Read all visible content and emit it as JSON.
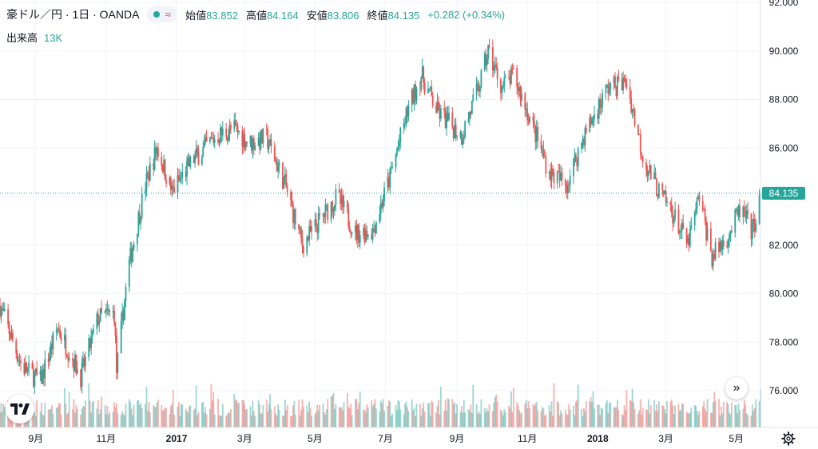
{
  "header": {
    "symbol_title": "豪ドル／円 · 1日 · OANDA",
    "ohlc": [
      {
        "label": "始値",
        "value": "83.852"
      },
      {
        "label": "高値",
        "value": "84.164"
      },
      {
        "label": "安値",
        "value": "83.806"
      },
      {
        "label": "終値",
        "value": "84.135"
      }
    ],
    "change": "+0.282 (+0.34%)",
    "pill_icons": [
      "status-dot-icon",
      "wave-icon"
    ]
  },
  "volume_legend": {
    "label": "出来高",
    "value": "13K"
  },
  "price_scale": {
    "ticks": [
      "92.000",
      "90.000",
      "88.000",
      "86.000",
      "84.000",
      "82.000",
      "80.000",
      "78.000",
      "76.000"
    ],
    "last_price_label": "84.135"
  },
  "time_scale": {
    "ticks": [
      "9月",
      "11月",
      "2017",
      "3月",
      "5月",
      "7月",
      "9月",
      "11月",
      "2018",
      "3月",
      "5月"
    ]
  },
  "icons": {
    "logo": "tradingview-logo-icon",
    "scroll": "double-chevron-right-icon",
    "settings": "gear-icon"
  },
  "colors": {
    "up": "#26a69a",
    "down": "#ef5350",
    "grid": "#f0f3fa",
    "text": "#131722",
    "last_price": "#26a69a"
  },
  "chart_data": {
    "type": "candlestick",
    "title": "豪ドル／円 · 1日 · OANDA",
    "ylim": [
      74.8,
      92.2
    ],
    "price_ticks": [
      92,
      90,
      88,
      86,
      84,
      82,
      80,
      78,
      76
    ],
    "x_ticks": [
      "9月",
      "11月",
      "2017",
      "3月",
      "5月",
      "7月",
      "9月",
      "11月",
      "2018",
      "3月",
      "5月"
    ],
    "last_close": 84.135,
    "grid": true,
    "anchors": [
      [
        "2016-08-01",
        79.5
      ],
      [
        "2016-08-20",
        77.0
      ],
      [
        "2016-09-05",
        76.4
      ],
      [
        "2016-09-20",
        78.6
      ],
      [
        "2016-10-10",
        76.6
      ],
      [
        "2016-10-25",
        79.0
      ],
      [
        "2016-11-08",
        79.2
      ],
      [
        "2016-11-10",
        76.8
      ],
      [
        "2016-11-20",
        81.0
      ],
      [
        "2016-12-05",
        84.5
      ],
      [
        "2016-12-15",
        86.0
      ],
      [
        "2016-12-28",
        84.2
      ],
      [
        "2017-01-15",
        85.5
      ],
      [
        "2017-02-05",
        86.5
      ],
      [
        "2017-02-20",
        86.8
      ],
      [
        "2017-03-05",
        86.2
      ],
      [
        "2017-03-20",
        86.4
      ],
      [
        "2017-04-05",
        84.5
      ],
      [
        "2017-04-20",
        82.0
      ],
      [
        "2017-05-08",
        83.2
      ],
      [
        "2017-05-20",
        84.0
      ],
      [
        "2017-06-05",
        82.5
      ],
      [
        "2017-06-20",
        82.6
      ],
      [
        "2017-07-05",
        84.8
      ],
      [
        "2017-07-20",
        87.5
      ],
      [
        "2017-08-01",
        89.0
      ],
      [
        "2017-08-15",
        87.5
      ],
      [
        "2017-09-05",
        86.5
      ],
      [
        "2017-09-20",
        88.5
      ],
      [
        "2017-09-28",
        90.0
      ],
      [
        "2017-10-10",
        88.5
      ],
      [
        "2017-10-20",
        89.0
      ],
      [
        "2017-11-01",
        87.5
      ],
      [
        "2017-11-20",
        85.0
      ],
      [
        "2017-12-05",
        84.5
      ],
      [
        "2017-12-20",
        86.5
      ],
      [
        "2018-01-10",
        88.5
      ],
      [
        "2018-01-26",
        88.7
      ],
      [
        "2018-02-10",
        85.5
      ],
      [
        "2018-02-25",
        84.0
      ],
      [
        "2018-03-05",
        83.5
      ],
      [
        "2018-03-20",
        82.0
      ],
      [
        "2018-03-30",
        84.0
      ],
      [
        "2018-04-10",
        81.5
      ],
      [
        "2018-04-25",
        82.5
      ],
      [
        "2018-05-05",
        83.5
      ],
      [
        "2018-05-15",
        82.5
      ],
      [
        "2018-05-22",
        84.135
      ]
    ]
  }
}
